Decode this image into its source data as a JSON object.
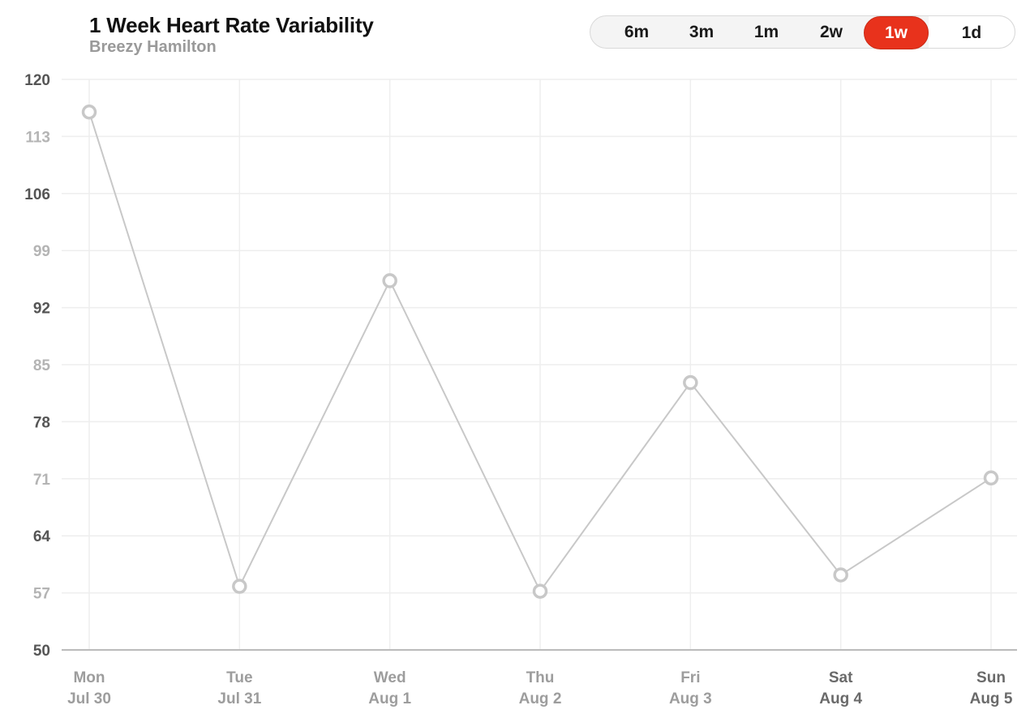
{
  "header": {
    "title": "1 Week Heart Rate Variability",
    "subtitle": "Breezy Hamilton"
  },
  "range_selector": {
    "options": [
      "6m",
      "3m",
      "1m",
      "2w",
      "1w",
      "1d"
    ],
    "selected": "1w"
  },
  "colors": {
    "accent": "#e8321c",
    "line": "#c8c8c8",
    "grid": "#eeeeee",
    "axis": "#bbbbbb",
    "tick_dark": "#555555",
    "tick_light": "#b4b4b4"
  },
  "chart_data": {
    "type": "line",
    "title": "1 Week Heart Rate Variability",
    "subtitle": "Breezy Hamilton",
    "xlabel": "",
    "ylabel": "",
    "ylim": [
      50,
      120
    ],
    "yticks": [
      50,
      57,
      64,
      71,
      78,
      85,
      92,
      99,
      106,
      113,
      120
    ],
    "grid": true,
    "categories": [
      {
        "day": "Mon",
        "date": "Jul 30"
      },
      {
        "day": "Tue",
        "date": "Jul 31"
      },
      {
        "day": "Wed",
        "date": "Aug 1"
      },
      {
        "day": "Thu",
        "date": "Aug 2"
      },
      {
        "day": "Fri",
        "date": "Aug 3"
      },
      {
        "day": "Sat",
        "date": "Aug 4"
      },
      {
        "day": "Sun",
        "date": "Aug 5"
      }
    ],
    "series": [
      {
        "values": [
          116,
          57.8,
          95.3,
          57.2,
          82.8,
          59.2,
          71.1
        ]
      }
    ]
  }
}
